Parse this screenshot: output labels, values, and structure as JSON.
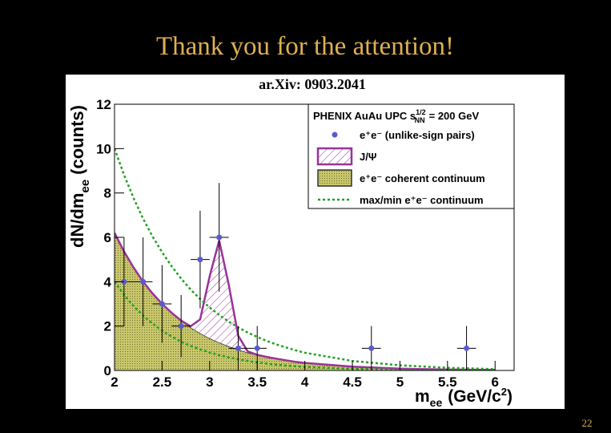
{
  "slide_title": "Thank you for the attention!",
  "page_number": "22",
  "chart_data": {
    "type": "scatter",
    "title": "ar.Xiv: 0903.2041",
    "legend_title": [
      "PHENIX AuAu UPC s",
      "1/2",
      "NN",
      "= 200 GeV"
    ],
    "y_label": [
      "dN/dm",
      "ee",
      "(counts)"
    ],
    "x_label": [
      "m",
      "ee",
      "(GeV/c",
      "2",
      ")"
    ],
    "xlim": [
      2,
      6.2
    ],
    "ylim": [
      0,
      12
    ],
    "xticks": [
      2,
      2.5,
      3,
      3.5,
      4,
      4.5,
      5,
      5.5,
      6
    ],
    "yticks": [
      0,
      2,
      4,
      6,
      8,
      10,
      12
    ],
    "legend": "top-right",
    "x": [
      2.0,
      2.1,
      2.2,
      2.3,
      2.4,
      2.5,
      2.6,
      2.7,
      2.8,
      2.9,
      3.0,
      3.1,
      3.2,
      3.3,
      3.4,
      3.5,
      3.6,
      3.7,
      3.8,
      3.9,
      4.0,
      4.5,
      5.0,
      5.5,
      6.0
    ],
    "series": [
      {
        "name": "e⁺e⁻ (unlike-sign pairs)",
        "type": "scatter",
        "color": "#5a5ad0",
        "x": [
          2.1,
          2.3,
          2.5,
          2.7,
          2.9,
          3.1,
          3.3,
          3.5,
          4.7,
          5.7
        ],
        "values": [
          4,
          4,
          3,
          2,
          5,
          6,
          1,
          1,
          1,
          1
        ],
        "xerr": [
          0.1,
          0.1,
          0.1,
          0.1,
          0.1,
          0.1,
          0.1,
          0.1,
          0.1,
          0.1
        ],
        "yerr": [
          2,
          2,
          1.75,
          1.4,
          2.2,
          2.45,
          1,
          1,
          1,
          1
        ]
      },
      {
        "name": "J/Ψ",
        "type": "area",
        "stack_on": 2,
        "color": "#993399",
        "values": [
          0,
          0,
          0,
          0,
          0,
          0,
          0,
          0,
          0.05,
          0.62,
          2.79,
          4.6,
          2.79,
          0.62,
          0.05,
          0,
          0,
          0,
          0,
          0,
          0,
          0,
          0,
          0,
          0
        ]
      },
      {
        "name": "e⁺e⁻ coherent continuum",
        "type": "area",
        "color": "#c9c76b",
        "values": [
          6.2,
          5.36,
          4.64,
          4.01,
          3.47,
          3.0,
          2.6,
          2.25,
          1.94,
          1.68,
          1.45,
          1.26,
          1.09,
          0.94,
          0.81,
          0.7,
          0.61,
          0.53,
          0.46,
          0.39,
          0.34,
          0.17,
          0.08,
          0.04,
          0.02
        ]
      },
      {
        "name": "max/min e⁺e⁻ continuum",
        "type": "line",
        "dashed": true,
        "color": "#22a022",
        "values": [
          10,
          8.82,
          7.77,
          6.85,
          6.04,
          5.33,
          4.7,
          4.14,
          3.65,
          3.22,
          2.84,
          2.5,
          2.2,
          1.94,
          1.71,
          1.51,
          1.33,
          1.17,
          1.04,
          0.91,
          0.8,
          0.43,
          0.23,
          0.12,
          0.06
        ],
        "values_min": [
          4,
          3.41,
          2.9,
          2.48,
          2.11,
          1.8,
          1.53,
          1.3,
          1.11,
          0.95,
          0.81,
          0.69,
          0.59,
          0.5,
          0.43,
          0.36,
          0.31,
          0.26,
          0.22,
          0.19,
          0.16,
          0.07,
          0.03,
          0.01,
          0
        ]
      }
    ]
  }
}
